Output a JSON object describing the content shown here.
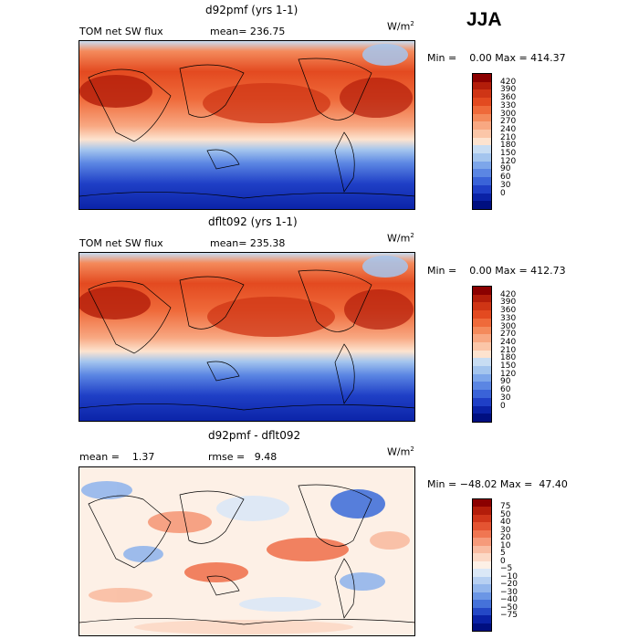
{
  "season_label": "JJA",
  "chart_data": [
    {
      "type": "heatmap",
      "title": "d92pmf (yrs 1-1)",
      "subtitle": "TOM net SW flux",
      "stat": "mean= 236.75",
      "units": "W/m",
      "units_exp": "2",
      "minmax": "Min =    0.00 Max = 414.37",
      "colorbar_ticks": [
        "420",
        "390",
        "360",
        "330",
        "300",
        "270",
        "240",
        "210",
        "180",
        "150",
        "120",
        "90",
        "60",
        "30",
        "0"
      ],
      "colorbar_colors": [
        "#8b0000",
        "#b31d0a",
        "#cf3515",
        "#e34a20",
        "#ef6a3a",
        "#f48a5b",
        "#f8a882",
        "#fbc6a8",
        "#fde3cf",
        "#c8ddf3",
        "#a4c5ee",
        "#7da6ea",
        "#5b86e3",
        "#3a63d8",
        "#1f3fc6",
        "#0a22a6",
        "#000f80"
      ],
      "note": "global field: warm (red/orange) over NH continents/subtropics, cold (blue) toward south pole"
    },
    {
      "type": "heatmap",
      "title": "dflt092 (yrs 1-1)",
      "subtitle": "TOM net SW flux",
      "stat": "mean= 235.38",
      "units": "W/m",
      "units_exp": "2",
      "minmax": "Min =    0.00 Max = 412.73",
      "colorbar_ticks": [
        "420",
        "390",
        "360",
        "330",
        "300",
        "270",
        "240",
        "210",
        "180",
        "150",
        "120",
        "90",
        "60",
        "30",
        "0"
      ],
      "colorbar_colors": [
        "#8b0000",
        "#b31d0a",
        "#cf3515",
        "#e34a20",
        "#ef6a3a",
        "#f48a5b",
        "#f8a882",
        "#fbc6a8",
        "#fde3cf",
        "#c8ddf3",
        "#a4c5ee",
        "#7da6ea",
        "#5b86e3",
        "#3a63d8",
        "#1f3fc6",
        "#0a22a6",
        "#000f80"
      ]
    },
    {
      "type": "heatmap",
      "title": "d92pmf - dflt092",
      "subtitle": "mean =    1.37",
      "stat": "rmse =   9.48",
      "units": "W/m",
      "units_exp": "2",
      "minmax": "Min = −48.02 Max =  47.40",
      "colorbar_ticks": [
        "75",
        "50",
        "40",
        "30",
        "20",
        "10",
        "5",
        "0",
        "−5",
        "−10",
        "−20",
        "−30",
        "−40",
        "−50",
        "−75"
      ],
      "colorbar_colors": [
        "#8b0000",
        "#b31d0a",
        "#d0361a",
        "#e45432",
        "#f07652",
        "#f69a7a",
        "#f9bca2",
        "#fcd9c6",
        "#fdf0e6",
        "#dbe8f7",
        "#b7d0f2",
        "#93b6ec",
        "#6b96e5",
        "#4572da",
        "#2448c6",
        "#0a22a6",
        "#000f80"
      ]
    }
  ]
}
